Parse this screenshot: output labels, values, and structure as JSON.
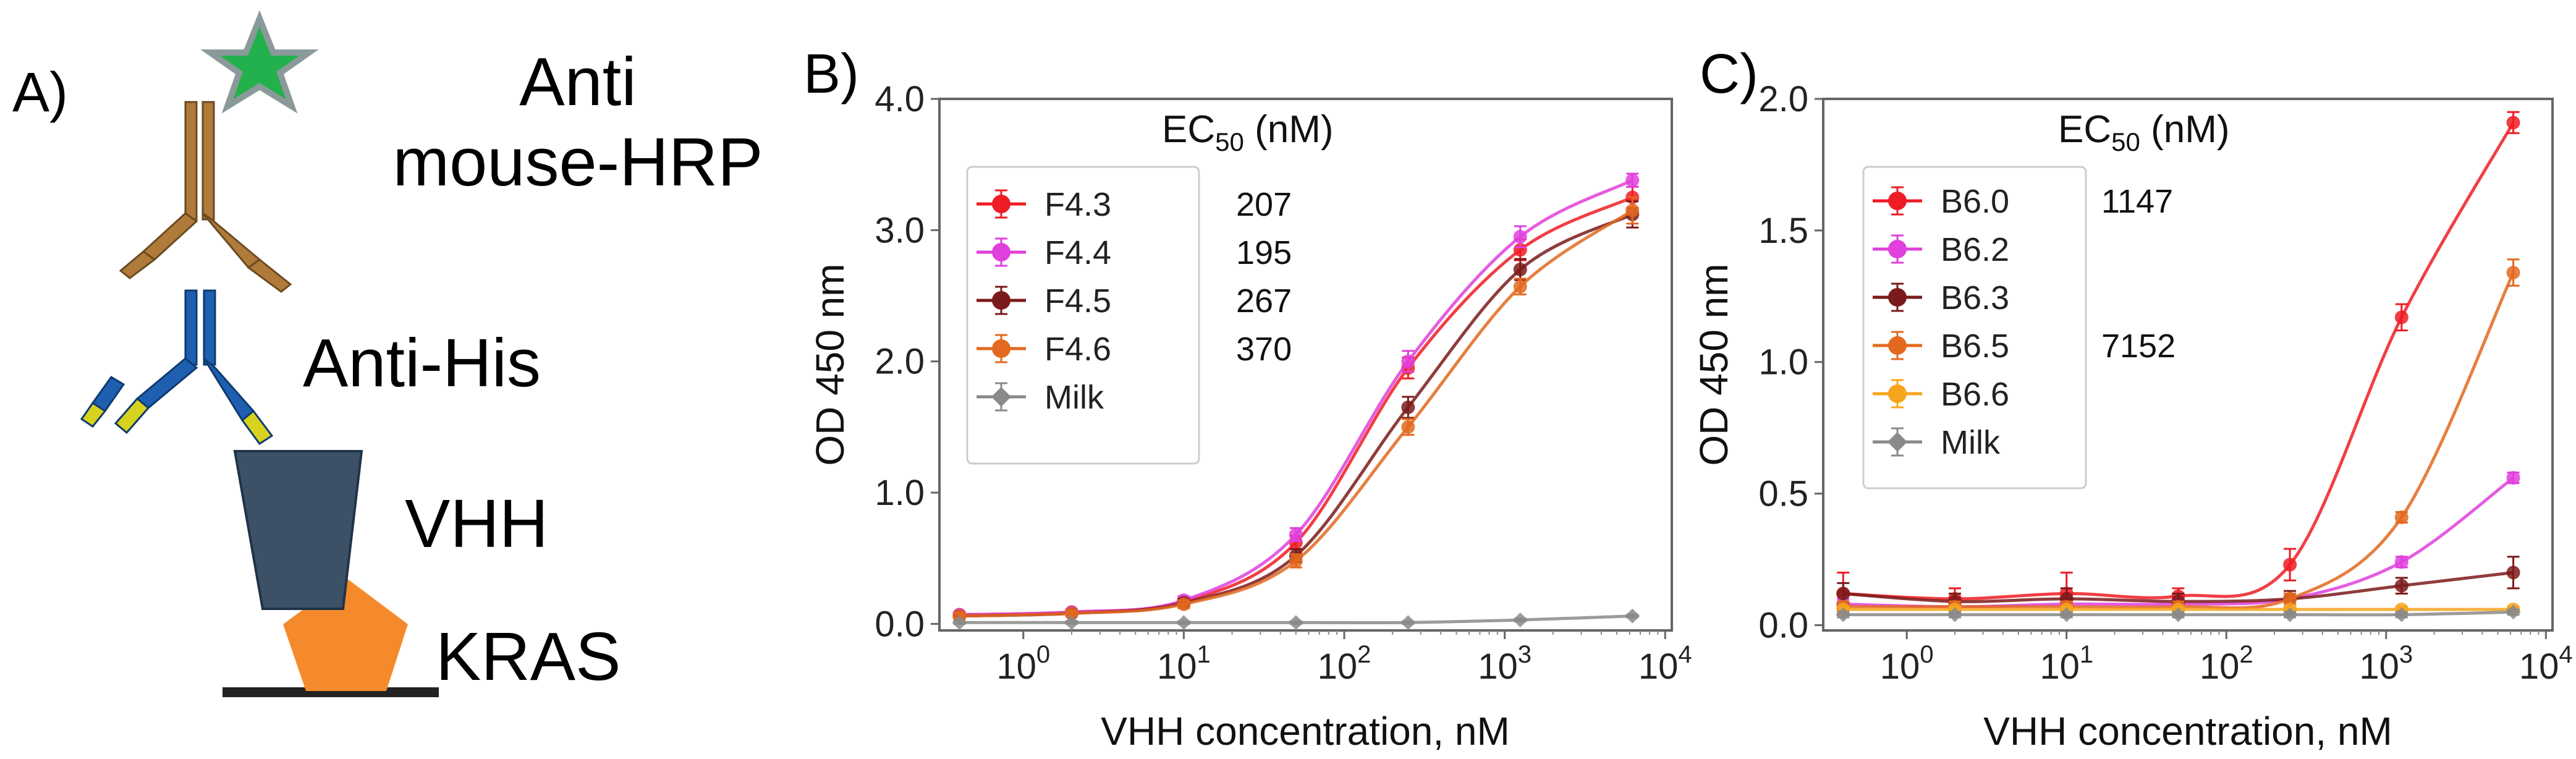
{
  "panel_a": {
    "letter": "A)",
    "labels": {
      "anti_mouse": [
        "Anti",
        "mouse-HRP"
      ],
      "anti_his": "Anti-His",
      "vhh": "VHH",
      "kras": "KRAS"
    },
    "colors": {
      "star": "#22b14c",
      "hrp_antibody": "#b07a3a",
      "his_antibody": "#1f5fb0",
      "his_tips": "#d6d21e",
      "vhh": "#3d5166",
      "kras": "#f58a2c",
      "surface": "#222222"
    }
  },
  "chart_data": [
    {
      "panel": "B)",
      "type": "line",
      "xscale": "log",
      "xlabel": "VHH concentration, nM",
      "ylabel": "OD 450 nm",
      "xlim": [
        0.3,
        11000
      ],
      "ylim": [
        -0.05,
        4.0
      ],
      "xticks": [
        1,
        10,
        100,
        1000,
        10000
      ],
      "xtick_labels": [
        [
          "10",
          "0"
        ],
        [
          "10",
          "1"
        ],
        [
          "10",
          "2"
        ],
        [
          "10",
          "3"
        ],
        [
          "10",
          "4"
        ]
      ],
      "yticks": [
        0,
        1,
        2,
        3,
        4
      ],
      "ytick_labels": [
        "0.0",
        "1.0",
        "2.0",
        "3.0",
        "4.0"
      ],
      "ec_header": {
        "main": "EC",
        "sub": "50",
        "unit": " (nM)"
      },
      "x": [
        0.4,
        2,
        10,
        50,
        250,
        1250,
        6250
      ],
      "series": [
        {
          "name": "F4.3",
          "color": "#ee1c25",
          "marker": "circle",
          "ec50": "207",
          "values": [
            0.07,
            0.09,
            0.17,
            0.62,
            1.95,
            2.85,
            3.25
          ],
          "err": [
            0.02,
            0.02,
            0.03,
            0.05,
            0.08,
            0.08,
            0.08
          ]
        },
        {
          "name": "F4.4",
          "color": "#e040dc",
          "marker": "circle",
          "ec50": "195",
          "values": [
            0.07,
            0.09,
            0.18,
            0.68,
            2.0,
            2.95,
            3.38
          ],
          "err": [
            0.02,
            0.02,
            0.03,
            0.05,
            0.08,
            0.08,
            0.05
          ]
        },
        {
          "name": "F4.5",
          "color": "#7b1a1a",
          "marker": "circle",
          "ec50": "267",
          "values": [
            0.06,
            0.08,
            0.16,
            0.52,
            1.65,
            2.7,
            3.12
          ],
          "err": [
            0.02,
            0.02,
            0.03,
            0.05,
            0.08,
            0.08,
            0.1
          ]
        },
        {
          "name": "F4.6",
          "color": "#e2691f",
          "marker": "circle",
          "ec50": "370",
          "values": [
            0.06,
            0.08,
            0.15,
            0.48,
            1.5,
            2.57,
            3.15
          ],
          "err": [
            0.02,
            0.02,
            0.03,
            0.05,
            0.06,
            0.06,
            0.1
          ]
        },
        {
          "name": "Milk",
          "color": "#8a8a8a",
          "marker": "diamond",
          "ec50": "",
          "values": [
            0.01,
            0.01,
            0.01,
            0.01,
            0.01,
            0.03,
            0.06
          ],
          "err": [
            0.01,
            0.01,
            0.01,
            0.01,
            0.01,
            0.01,
            0.01
          ]
        }
      ]
    },
    {
      "panel": "C)",
      "type": "line",
      "xscale": "log",
      "xlabel": "VHH concentration, nM",
      "ylabel": "OD 450 nm",
      "xlim": [
        0.3,
        11000
      ],
      "ylim": [
        -0.02,
        2.0
      ],
      "xticks": [
        1,
        10,
        100,
        1000,
        10000
      ],
      "xtick_labels": [
        [
          "10",
          "0"
        ],
        [
          "10",
          "1"
        ],
        [
          "10",
          "2"
        ],
        [
          "10",
          "3"
        ],
        [
          "10",
          "4"
        ]
      ],
      "yticks": [
        0,
        0.5,
        1.0,
        1.5,
        2.0
      ],
      "ytick_labels": [
        "0.0",
        "0.5",
        "1.0",
        "1.5",
        "2.0"
      ],
      "ec_header": {
        "main": "EC",
        "sub": "50",
        "unit": " (nM)"
      },
      "x": [
        0.4,
        2,
        10,
        50,
        250,
        1250,
        6250
      ],
      "series": [
        {
          "name": "B6.0",
          "color": "#ee1c25",
          "marker": "circle",
          "ec50": "1147",
          "values": [
            0.12,
            0.1,
            0.12,
            0.11,
            0.23,
            1.17,
            1.91
          ],
          "err": [
            0.08,
            0.04,
            0.08,
            0.03,
            0.06,
            0.05,
            0.04
          ]
        },
        {
          "name": "B6.2",
          "color": "#e040dc",
          "marker": "circle",
          "ec50": "",
          "values": [
            0.08,
            0.07,
            0.08,
            0.08,
            0.1,
            0.24,
            0.56
          ],
          "err": [
            0.02,
            0.02,
            0.02,
            0.02,
            0.02,
            0.02,
            0.02
          ]
        },
        {
          "name": "B6.3",
          "color": "#7b1a1a",
          "marker": "circle",
          "ec50": "",
          "values": [
            0.12,
            0.09,
            0.1,
            0.09,
            0.1,
            0.15,
            0.2
          ],
          "err": [
            0.04,
            0.03,
            0.04,
            0.03,
            0.03,
            0.03,
            0.06
          ]
        },
        {
          "name": "B6.5",
          "color": "#e2691f",
          "marker": "circle",
          "ec50": "7152",
          "values": [
            0.07,
            0.07,
            0.07,
            0.07,
            0.1,
            0.41,
            1.34
          ],
          "err": [
            0.02,
            0.02,
            0.02,
            0.02,
            0.02,
            0.02,
            0.05
          ]
        },
        {
          "name": "B6.6",
          "color": "#f7a51c",
          "marker": "circle",
          "ec50": "",
          "values": [
            0.06,
            0.06,
            0.06,
            0.06,
            0.06,
            0.06,
            0.06
          ],
          "err": [
            0.01,
            0.01,
            0.01,
            0.01,
            0.01,
            0.01,
            0.01
          ]
        },
        {
          "name": "Milk",
          "color": "#8a8a8a",
          "marker": "diamond",
          "ec50": "",
          "values": [
            0.04,
            0.04,
            0.04,
            0.04,
            0.04,
            0.04,
            0.05
          ],
          "err": [
            0.01,
            0.01,
            0.01,
            0.01,
            0.01,
            0.01,
            0.01
          ]
        }
      ]
    }
  ]
}
